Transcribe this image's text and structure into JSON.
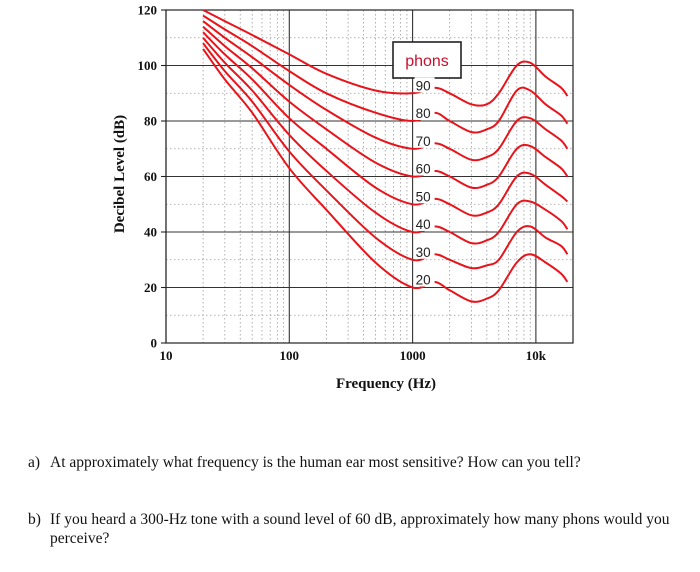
{
  "chart_data": {
    "type": "line",
    "xlabel": "Frequency (Hz)",
    "ylabel": "Decibel Level (dB)",
    "x_scale": "log",
    "xlim": [
      10,
      20000
    ],
    "ylim": [
      0,
      120
    ],
    "x_ticks": [
      {
        "value": 10,
        "label": "10"
      },
      {
        "value": 100,
        "label": "100"
      },
      {
        "value": 1000,
        "label": "1000"
      },
      {
        "value": 10000,
        "label": "10k"
      }
    ],
    "y_ticks": [
      0,
      20,
      40,
      60,
      80,
      100,
      120
    ],
    "grid": true,
    "legend_title": "phons",
    "legend_placement": "center-top",
    "line_color": "#e8141b",
    "x": [
      20,
      30,
      50,
      100,
      200,
      500,
      1000,
      1500,
      2000,
      3000,
      4000,
      5000,
      7000,
      9000,
      12000,
      16000,
      18000
    ],
    "series": [
      {
        "name": "90",
        "label": "90",
        "values": [
          120,
          116,
          111,
          104,
          97,
          91,
          90,
          92,
          90,
          86,
          86,
          90,
          100,
          101,
          96,
          92,
          89
        ]
      },
      {
        "name": "80",
        "label": "80",
        "values": [
          118,
          113,
          107,
          98,
          90,
          83,
          80,
          83,
          80,
          76,
          77,
          80,
          91,
          91,
          86,
          82,
          79
        ]
      },
      {
        "name": "70",
        "label": "70",
        "values": [
          116,
          110,
          103,
          93,
          84,
          74,
          70,
          72,
          70,
          66,
          67,
          70,
          80,
          81,
          77,
          73,
          70
        ]
      },
      {
        "name": "60",
        "label": "60",
        "values": [
          114,
          107,
          99,
          87,
          77,
          65,
          60,
          62,
          60,
          56,
          57,
          60,
          70,
          71,
          67,
          63,
          60
        ]
      },
      {
        "name": "50",
        "label": "50",
        "values": [
          112,
          104,
          95,
          81,
          70,
          56,
          50,
          52,
          50,
          46,
          47,
          50,
          60,
          61,
          57,
          53,
          51
        ]
      },
      {
        "name": "40",
        "label": "40",
        "values": [
          110,
          101,
          91,
          75,
          62,
          47,
          40,
          42,
          40,
          36,
          37,
          40,
          50,
          51,
          48,
          44,
          41
        ]
      },
      {
        "name": "30",
        "label": "30",
        "values": [
          108,
          98,
          87,
          69,
          55,
          38,
          30,
          32,
          30,
          27,
          28,
          30,
          40,
          42,
          38,
          35,
          32
        ]
      },
      {
        "name": "20",
        "label": "20",
        "values": [
          106,
          95,
          83,
          63,
          48,
          29,
          20,
          22,
          19,
          15,
          16,
          19,
          29,
          32,
          29,
          25,
          22
        ]
      }
    ]
  },
  "questions": [
    {
      "letter": "a)",
      "text": "At approximately what frequency is the human ear most sensitive? How can you tell?"
    },
    {
      "letter": "b)",
      "text": "If you heard a 300-Hz tone with a sound level of 60 dB, approximately how many phons would you perceive?"
    }
  ]
}
